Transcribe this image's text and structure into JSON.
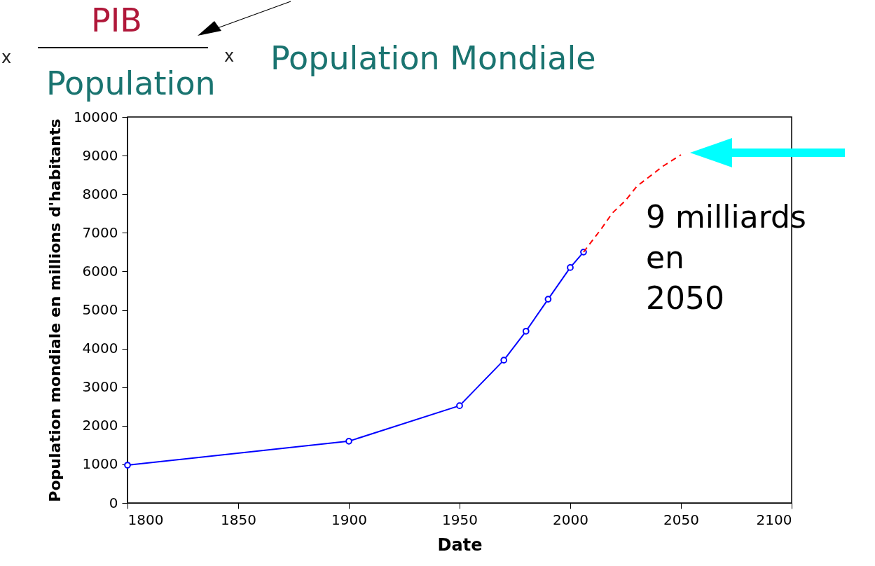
{
  "chart_data": {
    "type": "line",
    "xlabel": "Date",
    "ylabel": "Population mondiale en millions d'habitants",
    "xlim": [
      1800,
      2100
    ],
    "xticks": [
      1800,
      1850,
      1900,
      1950,
      2000,
      2050,
      2100
    ],
    "ylim": [
      0,
      10000
    ],
    "yticks": [
      0,
      1000,
      2000,
      3000,
      4000,
      5000,
      6000,
      7000,
      8000,
      9000,
      10000
    ],
    "series": [
      {
        "color": "#0000ff",
        "marker": "circle",
        "line_style": "solid",
        "x": [
          1800,
          1900,
          1950,
          1970,
          1980,
          1990,
          2000,
          2006
        ],
        "values": [
          980,
          1600,
          2520,
          3700,
          4450,
          5280,
          6100,
          6500
        ]
      },
      {
        "color": "#ff0000",
        "marker": "none",
        "line_style": "dashed",
        "x": [
          2006,
          2014,
          2019,
          2025,
          2030,
          2042,
          2050
        ],
        "values": [
          6500,
          7100,
          7510,
          7840,
          8200,
          8730,
          9020
        ]
      }
    ],
    "annotations": [
      "x",
      "PIB",
      "Population",
      "x",
      "Population Mondiale",
      {
        "text": "9 milliards en 2050",
        "x": 2050,
        "y": 9020
      }
    ]
  }
}
